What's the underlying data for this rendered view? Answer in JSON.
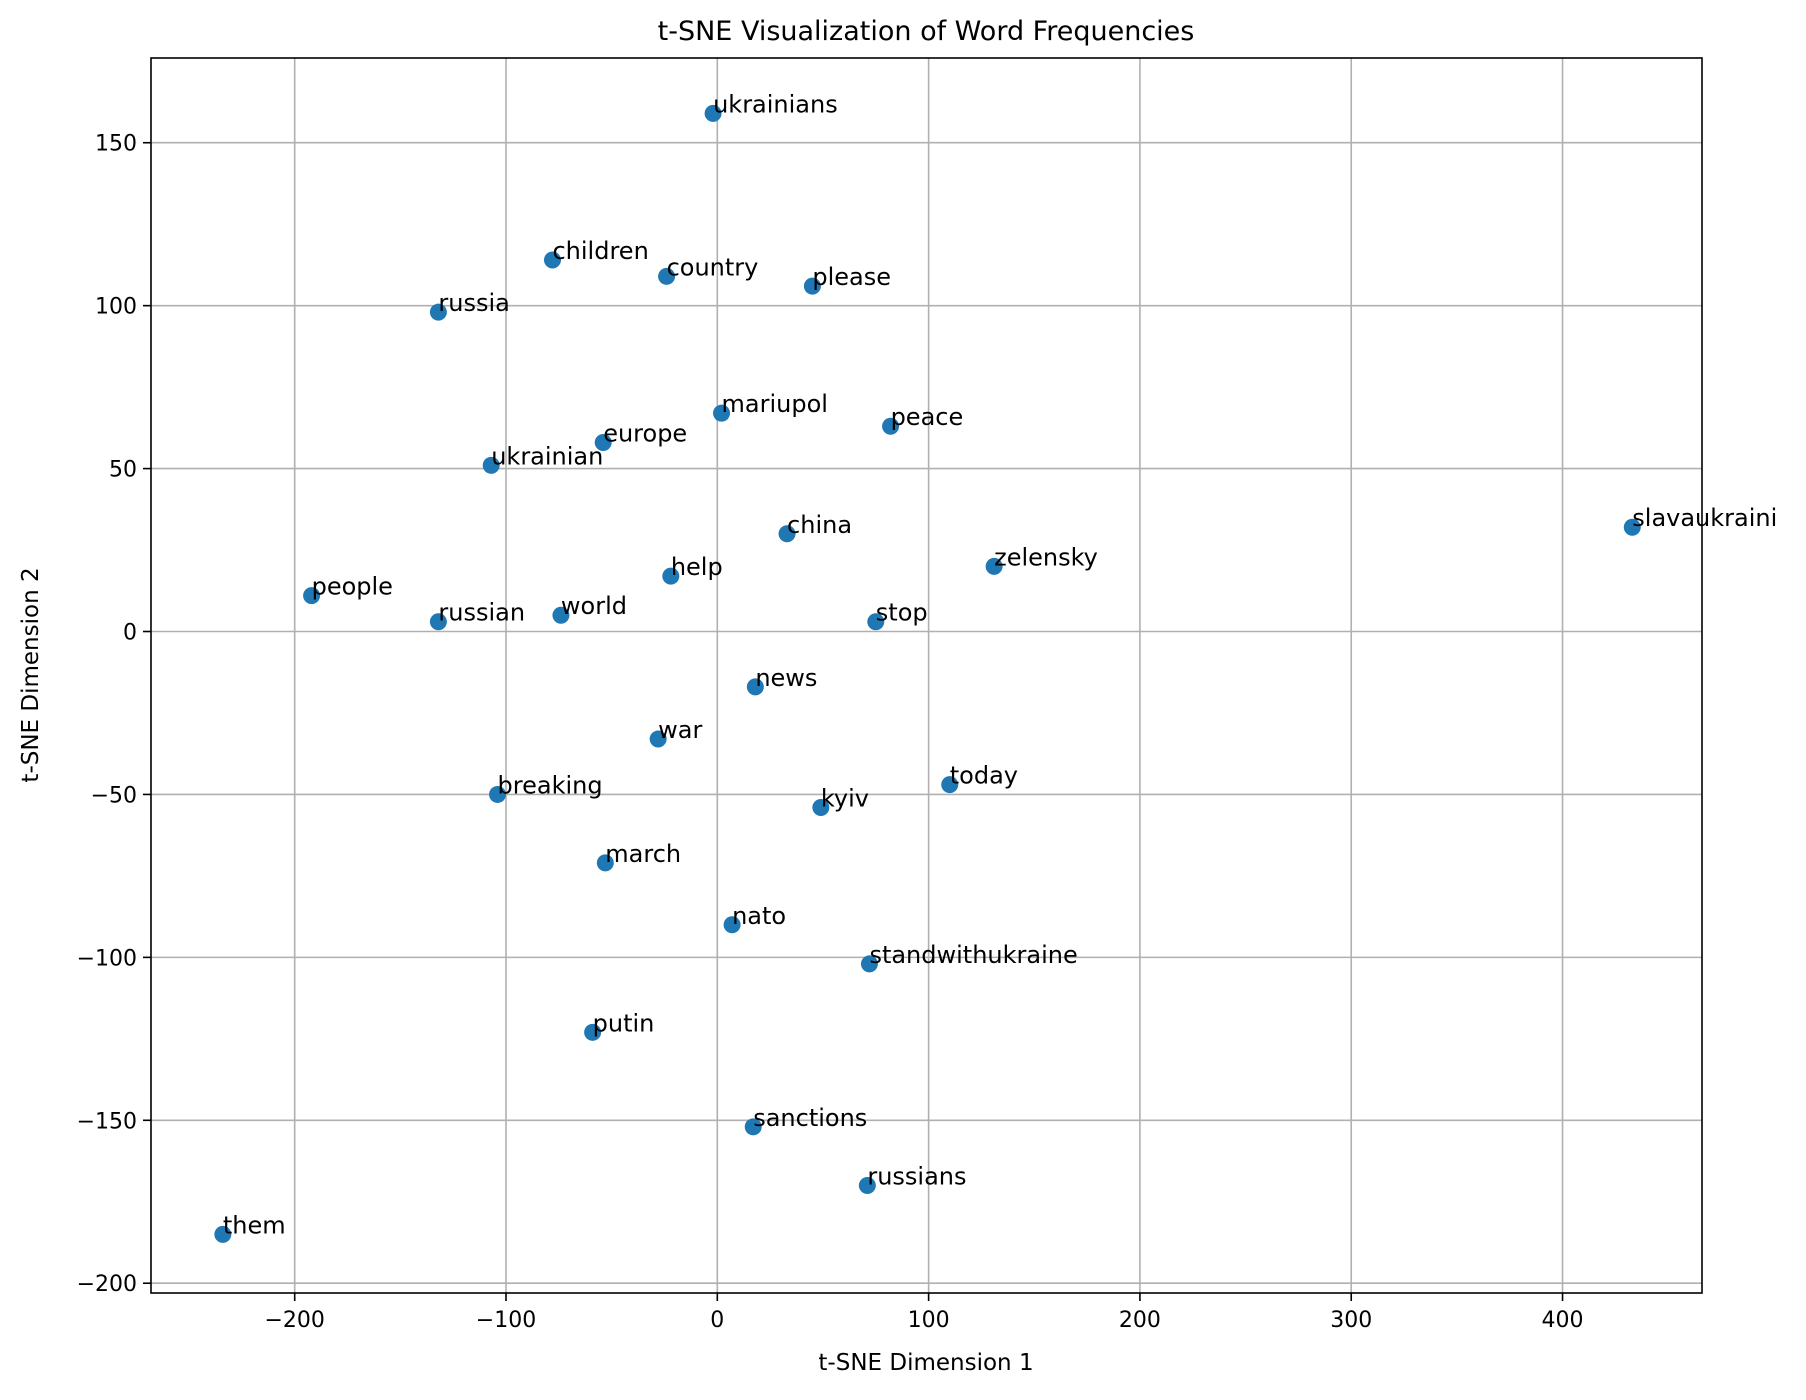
{
  "chart_data": {
    "type": "scatter",
    "title": "t-SNE Visualization of Word Frequencies",
    "xlabel": "t-SNE Dimension 1",
    "ylabel": "t-SNE Dimension 2",
    "xlim": [
      -268,
      466
    ],
    "ylim": [
      -203,
      176
    ],
    "xticks": [
      -200,
      -100,
      0,
      100,
      200,
      300,
      400
    ],
    "yticks": [
      -200,
      -150,
      -100,
      -50,
      0,
      50,
      100,
      150
    ],
    "grid": true,
    "color": "#1f77b4",
    "points": [
      {
        "label": "ukrainians",
        "x": -2,
        "y": 159
      },
      {
        "label": "children",
        "x": -78,
        "y": 114
      },
      {
        "label": "country",
        "x": -24,
        "y": 109
      },
      {
        "label": "please",
        "x": 45,
        "y": 106
      },
      {
        "label": "russia",
        "x": -132,
        "y": 98
      },
      {
        "label": "mariupol",
        "x": 2,
        "y": 67
      },
      {
        "label": "peace",
        "x": 82,
        "y": 63
      },
      {
        "label": "europe",
        "x": -54,
        "y": 58
      },
      {
        "label": "ukrainian",
        "x": -107,
        "y": 51
      },
      {
        "label": "china",
        "x": 33,
        "y": 30
      },
      {
        "label": "slavaukraini",
        "x": 433,
        "y": 32
      },
      {
        "label": "zelensky",
        "x": 131,
        "y": 20
      },
      {
        "label": "help",
        "x": -22,
        "y": 17
      },
      {
        "label": "people",
        "x": -192,
        "y": 11
      },
      {
        "label": "russian",
        "x": -132,
        "y": 3
      },
      {
        "label": "world",
        "x": -74,
        "y": 5
      },
      {
        "label": "stop",
        "x": 75,
        "y": 3
      },
      {
        "label": "news",
        "x": 18,
        "y": -17
      },
      {
        "label": "war",
        "x": -28,
        "y": -33
      },
      {
        "label": "today",
        "x": 110,
        "y": -47
      },
      {
        "label": "breaking",
        "x": -104,
        "y": -50
      },
      {
        "label": "kyiv",
        "x": 49,
        "y": -54
      },
      {
        "label": "march",
        "x": -53,
        "y": -71
      },
      {
        "label": "nato",
        "x": 7,
        "y": -90
      },
      {
        "label": "standwithukraine",
        "x": 72,
        "y": -102
      },
      {
        "label": "putin",
        "x": -59,
        "y": -123
      },
      {
        "label": "sanctions",
        "x": 17,
        "y": -152
      },
      {
        "label": "russians",
        "x": 71,
        "y": -170
      },
      {
        "label": "them",
        "x": -234,
        "y": -185
      }
    ]
  }
}
